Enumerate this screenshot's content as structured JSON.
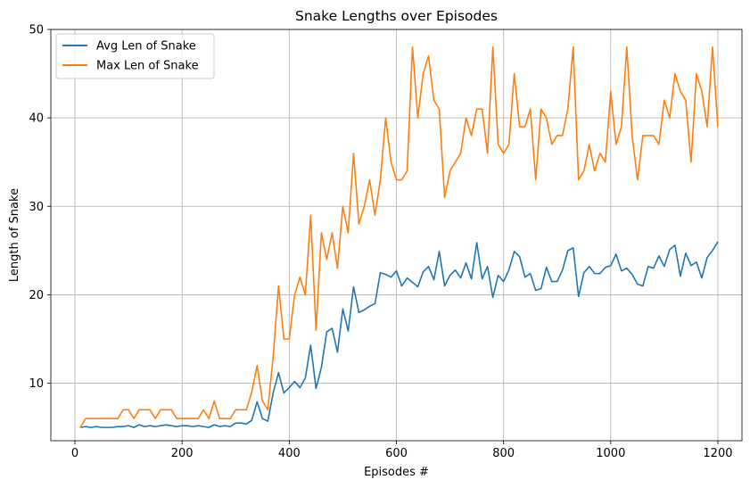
{
  "chart_data": {
    "type": "line",
    "title": "Snake Lengths over Episodes",
    "xlabel": "Episodes #",
    "ylabel": "Length of Snake",
    "xlim": [
      -45,
      1245
    ],
    "ylim": [
      3.5,
      50
    ],
    "xticks": [
      0,
      200,
      400,
      600,
      800,
      1000,
      1200
    ],
    "yticks": [
      10,
      20,
      30,
      40,
      50
    ],
    "grid": true,
    "legend_position": "top-left",
    "x": [
      10,
      20,
      30,
      40,
      50,
      60,
      70,
      80,
      90,
      100,
      110,
      120,
      130,
      140,
      150,
      160,
      170,
      180,
      190,
      200,
      210,
      220,
      230,
      240,
      250,
      260,
      270,
      280,
      290,
      300,
      310,
      320,
      330,
      340,
      350,
      360,
      370,
      380,
      390,
      400,
      410,
      420,
      430,
      440,
      450,
      460,
      470,
      480,
      490,
      500,
      510,
      520,
      530,
      540,
      550,
      560,
      570,
      580,
      590,
      600,
      610,
      620,
      630,
      640,
      650,
      660,
      670,
      680,
      690,
      700,
      710,
      720,
      730,
      740,
      750,
      760,
      770,
      780,
      790,
      800,
      810,
      820,
      830,
      840,
      850,
      860,
      870,
      880,
      890,
      900,
      910,
      920,
      930,
      940,
      950,
      960,
      970,
      980,
      990,
      1000,
      1010,
      1020,
      1030,
      1040,
      1050,
      1060,
      1070,
      1080,
      1090,
      1100,
      1110,
      1120,
      1130,
      1140,
      1150,
      1160,
      1170,
      1180,
      1190,
      1200
    ],
    "series": [
      {
        "name": "Avg Len of Snake",
        "color": "#1f77b4",
        "values": [
          5.0,
          5.1,
          5.0,
          5.1,
          5.0,
          5.0,
          5.0,
          5.1,
          5.1,
          5.2,
          5.0,
          5.3,
          5.1,
          5.2,
          5.1,
          5.2,
          5.3,
          5.2,
          5.1,
          5.2,
          5.2,
          5.1,
          5.2,
          5.1,
          5.0,
          5.3,
          5.1,
          5.2,
          5.1,
          5.5,
          5.5,
          5.4,
          5.8,
          7.9,
          6.0,
          5.7,
          8.9,
          11.2,
          8.9,
          9.5,
          10.2,
          9.5,
          10.6,
          14.3,
          9.4,
          11.8,
          15.8,
          16.2,
          13.5,
          18.4,
          15.9,
          20.9,
          18.0,
          18.3,
          18.7,
          19.0,
          22.5,
          22.3,
          22.0,
          22.7,
          21.0,
          21.9,
          21.4,
          20.9,
          22.6,
          23.2,
          21.7,
          24.9,
          21.0,
          22.2,
          22.8,
          21.9,
          23.6,
          21.8,
          25.9,
          21.8,
          23.2,
          19.7,
          22.2,
          21.5,
          22.8,
          24.9,
          24.3,
          22.0,
          22.4,
          20.5,
          20.7,
          23.1,
          21.5,
          21.5,
          22.8,
          25.0,
          25.3,
          19.8,
          22.5,
          23.2,
          22.4,
          22.4,
          23.1,
          23.3,
          24.6,
          22.7,
          23.0,
          22.3,
          21.2,
          21.0,
          23.2,
          23.0,
          24.4,
          23.2,
          25.1,
          25.6,
          22.1,
          24.7,
          23.3,
          23.7,
          21.9,
          24.2,
          25.0,
          26.0
        ]
      },
      {
        "name": "Max Len of Snake",
        "color": "#ff7f0e",
        "values": [
          5,
          6,
          6,
          6,
          6,
          6,
          6,
          6,
          7,
          7,
          6,
          7,
          7,
          7,
          6,
          7,
          7,
          7,
          6,
          6,
          6,
          6,
          6,
          7,
          6,
          8,
          6,
          6,
          6,
          7,
          7,
          7,
          9,
          12,
          8,
          7,
          13,
          21,
          15,
          15,
          20,
          22,
          20,
          29,
          16,
          27,
          24,
          27,
          23,
          30,
          27,
          36,
          28,
          30,
          33,
          29,
          33,
          40,
          35,
          33,
          33,
          34,
          48,
          40,
          45,
          47,
          42,
          41,
          31,
          34,
          35,
          36,
          40,
          38,
          41,
          41,
          36,
          48,
          37,
          36,
          37,
          45,
          39,
          39,
          41,
          33,
          41,
          40,
          37,
          38,
          38,
          41,
          48,
          33,
          34,
          37,
          34,
          36,
          35,
          43,
          37,
          39,
          48,
          38,
          33,
          38,
          38,
          38,
          37,
          42,
          40,
          45,
          43,
          42,
          35,
          45,
          43,
          39,
          48,
          39
        ]
      }
    ]
  }
}
